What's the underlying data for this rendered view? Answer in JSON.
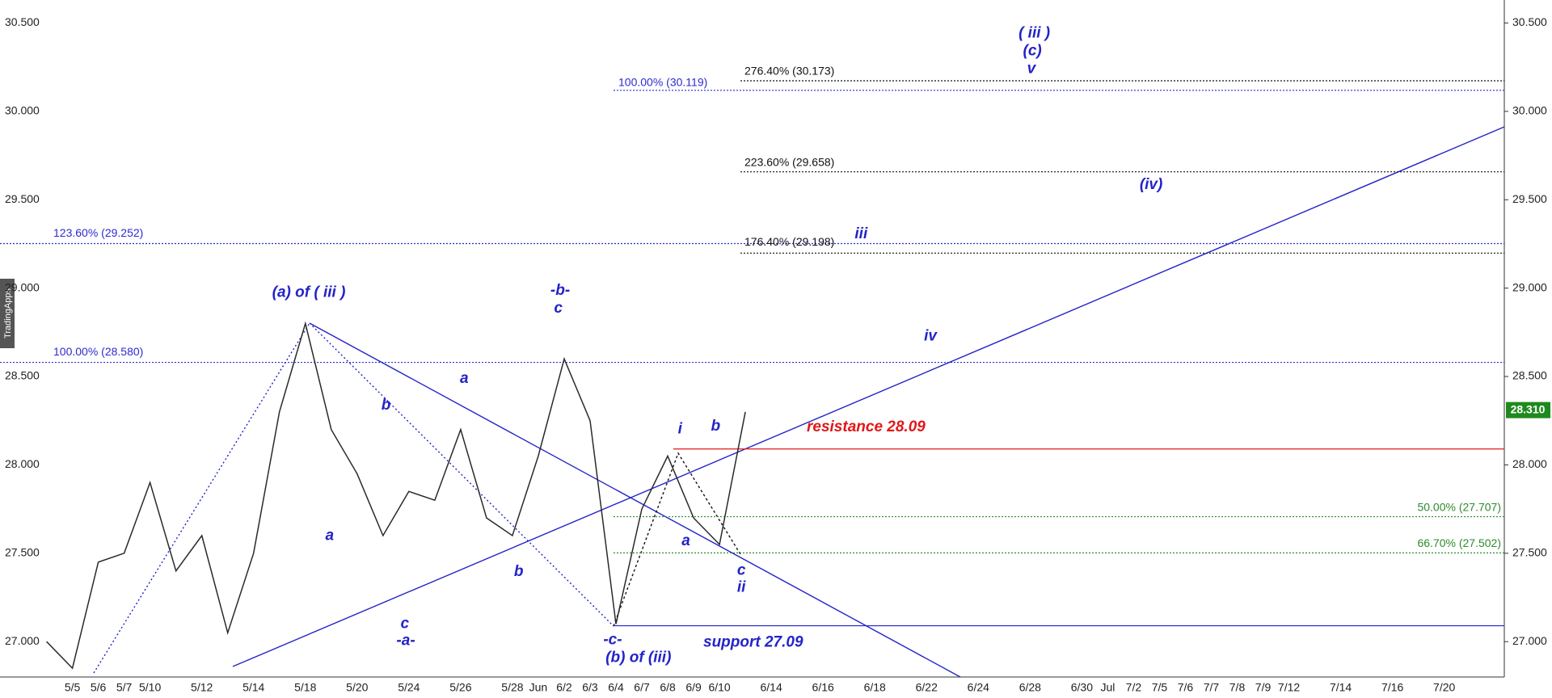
{
  "chart_data": {
    "type": "line",
    "side_label": "TradingApps",
    "categories": [
      null,
      "5/5",
      "5/6",
      "5/7",
      "5/10",
      null,
      "5/12",
      null,
      "5/14",
      null,
      "5/18",
      null,
      "5/20",
      null,
      "5/24",
      null,
      "5/26",
      null,
      "5/28",
      "Jun",
      "6/2",
      "6/3",
      "6/4",
      "6/7",
      "6/8",
      "6/9",
      "6/10",
      null,
      "6/14",
      null,
      "6/16",
      null,
      "6/18",
      null,
      "6/22",
      null,
      "6/24",
      null,
      "6/28",
      null,
      "6/30",
      "Jul",
      "7/2",
      "7/5",
      "7/6",
      "7/7",
      "7/8",
      "7/9",
      "7/12",
      null,
      "7/14",
      null,
      "7/16",
      null,
      "7/20",
      null
    ],
    "series": [
      {
        "color": "#2a2a2a",
        "values": [
          27.0,
          26.85,
          27.45,
          27.5,
          27.9,
          27.4,
          27.6,
          27.05,
          27.5,
          28.3,
          28.8,
          28.2,
          27.95,
          27.6,
          27.85,
          27.8,
          28.2,
          27.7,
          27.6,
          28.05,
          28.6,
          28.25,
          27.1,
          27.75,
          28.05,
          27.7,
          27.55,
          28.3,
          null,
          null,
          null,
          null,
          null,
          null,
          null,
          null,
          null,
          null,
          null,
          null,
          null,
          null,
          null,
          null,
          null,
          null,
          null,
          null,
          null,
          null,
          null,
          null,
          null,
          null,
          null,
          null
        ]
      }
    ],
    "ylim": [
      26.8,
      30.63
    ],
    "yticks": [
      {
        "value": 27.0,
        "label": "27.000"
      },
      {
        "value": 27.5,
        "label": "27.500"
      },
      {
        "value": 28.0,
        "label": "28.000"
      },
      {
        "value": 28.5,
        "label": "28.500"
      },
      {
        "value": 29.0,
        "label": "29.000"
      },
      {
        "value": 29.5,
        "label": "29.500"
      },
      {
        "value": 30.0,
        "label": "30.000"
      },
      {
        "value": 30.5,
        "label": "30.500"
      }
    ],
    "last_price": {
      "value": 28.31,
      "label": "28.310",
      "color": "#1e8a1e"
    },
    "levels": [
      {
        "label": "276.40% (30.173)",
        "value": 30.173,
        "color": "#111111"
      },
      {
        "label": "100.00% (30.119)",
        "value": 30.119,
        "color": "#2b2bd0"
      },
      {
        "label": "223.60% (29.658)",
        "value": 29.658,
        "color": "#111111"
      },
      {
        "label": "123.60% (29.252)",
        "value": 29.252,
        "color": "#2b2bd0"
      },
      {
        "label": "176.40% (29.198)",
        "value": 29.198,
        "color": "#111111"
      },
      {
        "label": "100.00% (28.580)",
        "value": 28.58,
        "color": "#2b2bd0"
      },
      {
        "label": "resistance 28.09",
        "value": 28.09,
        "color": "#e01818"
      },
      {
        "label": "50.00% (27.707)",
        "value": 27.707,
        "color": "#2e8b2e"
      },
      {
        "label": "66.70% (27.502)",
        "value": 27.502,
        "color": "#2e8b2e"
      },
      {
        "label": "support 27.09",
        "value": 27.09,
        "color": "#2323c8"
      }
    ],
    "annotations": [
      "( iii )",
      "(c)",
      "v",
      "(iv)",
      "iii",
      "iv",
      "(a) of ( iii )",
      "-b-",
      "c",
      "a",
      "b",
      "a",
      "b",
      "c",
      "-a-",
      "-c-",
      "(b) of (iii)",
      "i",
      "b",
      "a",
      "c",
      "ii"
    ]
  }
}
